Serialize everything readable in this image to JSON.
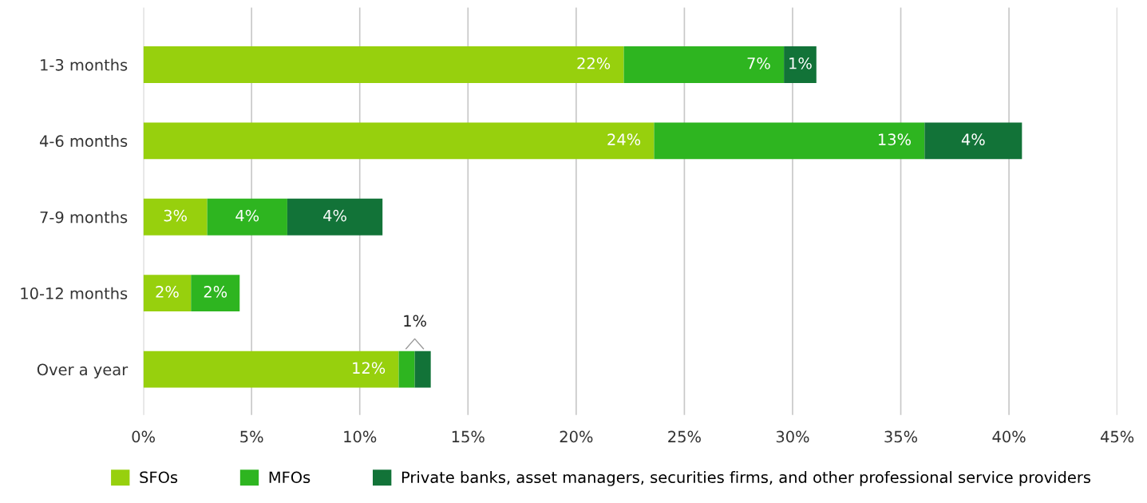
{
  "chart_data": {
    "type": "bar",
    "orientation": "horizontal",
    "stacked": true,
    "categories": [
      "1-3 months",
      "4-6 months",
      "7-9 months",
      "10-12 months",
      "Over a year"
    ],
    "series": [
      {
        "name": "SFOs",
        "color": "#97d00d",
        "values": [
          22.2,
          23.6,
          2.95,
          2.2,
          11.8
        ],
        "value_labels": [
          "22%",
          "24%",
          "3%",
          "2%",
          "12%"
        ]
      },
      {
        "name": "MFOs",
        "color": "#2eb520",
        "values": [
          7.4,
          12.5,
          3.7,
          2.25,
          0.74
        ],
        "value_labels": [
          "7%",
          "13%",
          "4%",
          "2%",
          null
        ]
      },
      {
        "name": "Private banks, asset managers, securities firms, and other professional service providers",
        "color": "#127338",
        "values": [
          1.5,
          4.5,
          4.4,
          0,
          0.74
        ],
        "value_labels": [
          "1%",
          "4%",
          "4%",
          null,
          null
        ]
      }
    ],
    "xlim": [
      0,
      45
    ],
    "xticks": [
      {
        "value": 0,
        "label": "0%"
      },
      {
        "value": 5,
        "label": "5%"
      },
      {
        "value": 10,
        "label": "10%"
      },
      {
        "value": 15,
        "label": "15%"
      },
      {
        "value": 20,
        "label": "20%"
      },
      {
        "value": 25,
        "label": "25%"
      },
      {
        "value": 30,
        "label": "30%"
      },
      {
        "value": 35,
        "label": "35%"
      },
      {
        "value": 40,
        "label": "40%"
      },
      {
        "value": 45,
        "label": "45%"
      }
    ],
    "annotations": [
      {
        "text": "1%",
        "x": 12.54,
        "y": "Over a year"
      }
    ],
    "grid": "x",
    "legend": "bottom"
  }
}
